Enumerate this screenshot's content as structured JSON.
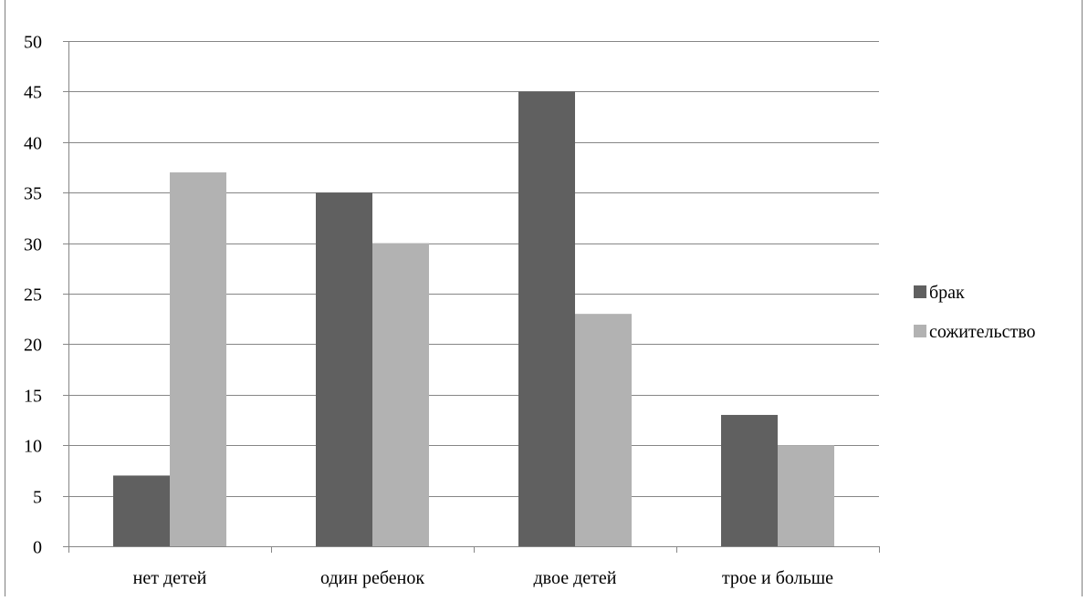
{
  "chart_data": {
    "type": "bar",
    "title": "",
    "categories": [
      "нет детей",
      "один ребенок",
      "двое детей",
      "трое и больше"
    ],
    "series": [
      {
        "name": "брак",
        "values": [
          7,
          35,
          45,
          13
        ]
      },
      {
        "name": "сожительство",
        "values": [
          37,
          30,
          23,
          10
        ]
      }
    ],
    "ylim": [
      0,
      50
    ],
    "yticks": [
      0,
      5,
      10,
      15,
      20,
      25,
      30,
      35,
      40,
      45,
      50
    ],
    "xlabel": "",
    "ylabel": "",
    "grid": true,
    "legend": "right"
  },
  "colors": {
    "series": [
      "#606060",
      "#b2b2b2"
    ],
    "grid": "#868686",
    "frame": "#7f7f7f"
  }
}
